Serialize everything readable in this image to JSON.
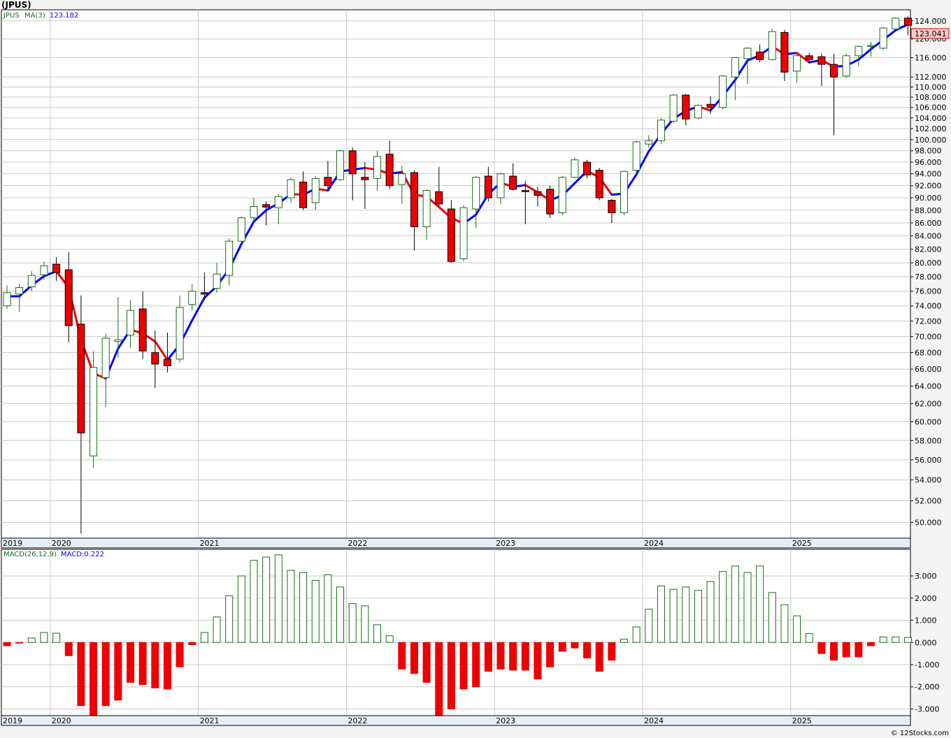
{
  "title": "(JPUS)",
  "copyright": "© 12Stocks.com",
  "colors": {
    "up": "#1a6b1a",
    "down_fill": "#ee0000",
    "ma_up": "#0000ff",
    "ma_down": "#ee0000",
    "grid": "#c8c8c8",
    "axis_band": "#e6eef6",
    "last_box": "#ffc8c8"
  },
  "price_panel": {
    "legend": {
      "ticker": "JPUS",
      "ma_label": "MA(3)",
      "ma_value": "123.182"
    },
    "last_price_label": "123.041",
    "y_ticks": [
      "50.000",
      "52.000",
      "54.000",
      "56.000",
      "58.000",
      "60.000",
      "62.000",
      "64.000",
      "66.000",
      "68.000",
      "70.000",
      "72.000",
      "74.000",
      "76.000",
      "78.000",
      "80.000",
      "82.000",
      "84.000",
      "86.000",
      "88.000",
      "90.000",
      "92.000",
      "94.000",
      "96.000",
      "98.000",
      "100.000",
      "102.000",
      "104.000",
      "106.000",
      "108.000",
      "110.000",
      "112.000",
      "116.000",
      "120.000",
      "124.000"
    ]
  },
  "macd_panel": {
    "legend": {
      "label": "MACD(26,12,9)",
      "value_label": "MACD:0.222"
    },
    "y_ticks": [
      "-3.000",
      "-2.000",
      "-1.000",
      "0.000",
      "1.000",
      "2.000",
      "3.000"
    ]
  },
  "x_axis": {
    "years": [
      {
        "label": "2019",
        "index": 0
      },
      {
        "label": "2020",
        "index": 4
      },
      {
        "label": "2021",
        "index": 16
      },
      {
        "label": "2022",
        "index": 28
      },
      {
        "label": "2023",
        "index": 40
      },
      {
        "label": "2024",
        "index": 52
      },
      {
        "label": "2025",
        "index": 64
      }
    ]
  },
  "chart_data": {
    "type": "candlestick",
    "scale": "log",
    "interval": "monthly",
    "ylim": [
      48.6,
      126.5
    ],
    "macd_ylim": [
      -3.3,
      4.2
    ],
    "ma_period": 3,
    "ohlc": [
      [
        74.0,
        76.8,
        73.6,
        75.8
      ],
      [
        75.6,
        77.0,
        73.2,
        76.5
      ],
      [
        76.6,
        78.8,
        76.0,
        78.2
      ],
      [
        78.3,
        80.2,
        77.6,
        79.6
      ],
      [
        79.8,
        80.8,
        77.4,
        78.6
      ],
      [
        79.0,
        81.6,
        69.3,
        71.4
      ],
      [
        71.6,
        75.4,
        49.0,
        58.8
      ],
      [
        56.4,
        68.2,
        55.2,
        66.2
      ],
      [
        65.0,
        70.4,
        61.6,
        69.8
      ],
      [
        69.4,
        75.2,
        67.4,
        69.6
      ],
      [
        70.2,
        74.8,
        68.6,
        73.4
      ],
      [
        73.6,
        76.0,
        67.2,
        68.2
      ],
      [
        68.0,
        70.8,
        63.8,
        66.6
      ],
      [
        67.2,
        70.5,
        65.6,
        66.4
      ],
      [
        67.2,
        75.4,
        66.8,
        73.8
      ],
      [
        74.2,
        77.0,
        73.4,
        76.0
      ],
      [
        75.8,
        78.6,
        74.8,
        75.6
      ],
      [
        76.4,
        80.0,
        75.8,
        78.4
      ],
      [
        78.2,
        83.6,
        76.8,
        83.2
      ],
      [
        83.2,
        87.0,
        82.6,
        86.8
      ],
      [
        86.8,
        90.0,
        86.0,
        88.6
      ],
      [
        88.9,
        89.4,
        85.6,
        88.5
      ],
      [
        88.4,
        90.6,
        85.8,
        90.2
      ],
      [
        90.0,
        93.4,
        89.2,
        93.0
      ],
      [
        92.6,
        94.4,
        88.0,
        88.4
      ],
      [
        89.2,
        93.6,
        88.0,
        93.2
      ],
      [
        93.4,
        96.2,
        91.2,
        92.0
      ],
      [
        93.0,
        98.2,
        92.8,
        98.0
      ],
      [
        98.0,
        98.6,
        89.6,
        94.0
      ],
      [
        93.4,
        96.0,
        88.2,
        93.0
      ],
      [
        93.2,
        98.0,
        91.2,
        97.0
      ],
      [
        97.4,
        99.8,
        91.4,
        92.0
      ],
      [
        92.2,
        95.4,
        89.0,
        94.0
      ],
      [
        94.2,
        94.6,
        81.8,
        85.4
      ],
      [
        85.4,
        91.4,
        83.4,
        91.2
      ],
      [
        91.0,
        95.2,
        88.6,
        89.0
      ],
      [
        88.2,
        89.6,
        80.0,
        80.2
      ],
      [
        80.6,
        88.8,
        80.2,
        88.4
      ],
      [
        88.2,
        93.6,
        85.2,
        93.4
      ],
      [
        93.6,
        95.2,
        89.4,
        90.0
      ],
      [
        90.0,
        94.2,
        89.0,
        94.0
      ],
      [
        93.6,
        95.8,
        91.2,
        91.4
      ],
      [
        91.2,
        92.8,
        85.8,
        91.0
      ],
      [
        91.0,
        91.8,
        88.6,
        90.4
      ],
      [
        91.4,
        92.0,
        86.8,
        87.4
      ],
      [
        87.6,
        93.6,
        87.2,
        93.4
      ],
      [
        93.4,
        96.8,
        93.2,
        96.4
      ],
      [
        96.0,
        96.4,
        93.2,
        93.8
      ],
      [
        94.6,
        95.0,
        89.6,
        90.0
      ],
      [
        89.6,
        89.8,
        86.0,
        87.6
      ],
      [
        87.6,
        94.6,
        87.2,
        94.4
      ],
      [
        94.6,
        99.8,
        94.0,
        99.6
      ],
      [
        99.2,
        100.8,
        98.6,
        99.8
      ],
      [
        99.8,
        104.0,
        99.2,
        103.6
      ],
      [
        103.4,
        108.6,
        103.0,
        108.4
      ],
      [
        108.4,
        108.6,
        102.6,
        103.8
      ],
      [
        104.0,
        106.6,
        103.8,
        106.4
      ],
      [
        106.6,
        108.2,
        104.8,
        106.0
      ],
      [
        106.0,
        112.4,
        105.6,
        112.2
      ],
      [
        112.0,
        116.0,
        107.4,
        116.0
      ],
      [
        115.8,
        118.2,
        110.6,
        118.0
      ],
      [
        117.2,
        118.8,
        115.0,
        115.6
      ],
      [
        115.6,
        122.2,
        115.4,
        121.6
      ],
      [
        121.4,
        122.0,
        111.2,
        113.0
      ],
      [
        113.2,
        116.8,
        110.8,
        116.4
      ],
      [
        116.4,
        117.0,
        114.8,
        115.6
      ],
      [
        116.2,
        116.8,
        110.2,
        114.6
      ],
      [
        114.6,
        116.8,
        100.8,
        112.0
      ],
      [
        112.2,
        116.8,
        111.8,
        116.4
      ],
      [
        116.4,
        118.6,
        114.2,
        118.4
      ],
      [
        118.4,
        119.4,
        116.2,
        118.6
      ],
      [
        118.0,
        122.6,
        117.6,
        122.4
      ],
      [
        122.2,
        124.8,
        121.8,
        124.6
      ],
      [
        124.6,
        125.0,
        120.8,
        123.0
      ]
    ],
    "ma3": [
      75.3,
      75.3,
      76.8,
      78.1,
      78.8,
      76.5,
      69.6,
      65.5,
      64.9,
      68.5,
      70.9,
      70.4,
      69.4,
      67.1,
      69.0,
      72.1,
      75.1,
      76.7,
      79.1,
      82.8,
      86.2,
      88.0,
      89.1,
      90.6,
      90.5,
      91.5,
      91.2,
      94.4,
      94.7,
      95.0,
      94.7,
      94.0,
      94.3,
      90.5,
      90.2,
      88.5,
      86.8,
      85.9,
      87.3,
      90.6,
      92.5,
      91.8,
      92.1,
      90.9,
      89.6,
      90.4,
      92.4,
      94.5,
      93.4,
      90.5,
      90.7,
      93.9,
      97.9,
      101.0,
      103.9,
      105.3,
      106.2,
      105.4,
      108.2,
      111.4,
      115.4,
      116.5,
      118.4,
      116.7,
      117.0,
      115.0,
      115.5,
      114.1,
      114.3,
      115.6,
      117.8,
      119.8,
      121.9,
      123.2
    ],
    "macd_hist": [
      -0.15,
      -0.02,
      0.2,
      0.45,
      0.42,
      -0.6,
      -2.85,
      -3.3,
      -2.85,
      -2.6,
      -1.8,
      -1.9,
      -2.05,
      -2.1,
      -1.1,
      -0.1,
      0.45,
      1.15,
      2.1,
      3.0,
      3.7,
      3.85,
      3.95,
      3.25,
      3.15,
      2.8,
      3.05,
      2.5,
      1.75,
      1.65,
      0.8,
      0.3,
      -1.2,
      -1.4,
      -1.8,
      -3.3,
      -3.0,
      -2.1,
      -2.0,
      -1.3,
      -1.2,
      -1.25,
      -1.25,
      -1.65,
      -1.1,
      -0.4,
      -0.25,
      -0.7,
      -1.3,
      -0.8,
      0.15,
      0.7,
      1.5,
      2.55,
      2.4,
      2.5,
      2.35,
      2.75,
      3.2,
      3.45,
      3.15,
      3.45,
      2.25,
      1.7,
      1.2,
      0.4,
      -0.5,
      -0.8,
      -0.65,
      -0.65,
      -0.15,
      0.25,
      0.25,
      0.222
    ]
  }
}
